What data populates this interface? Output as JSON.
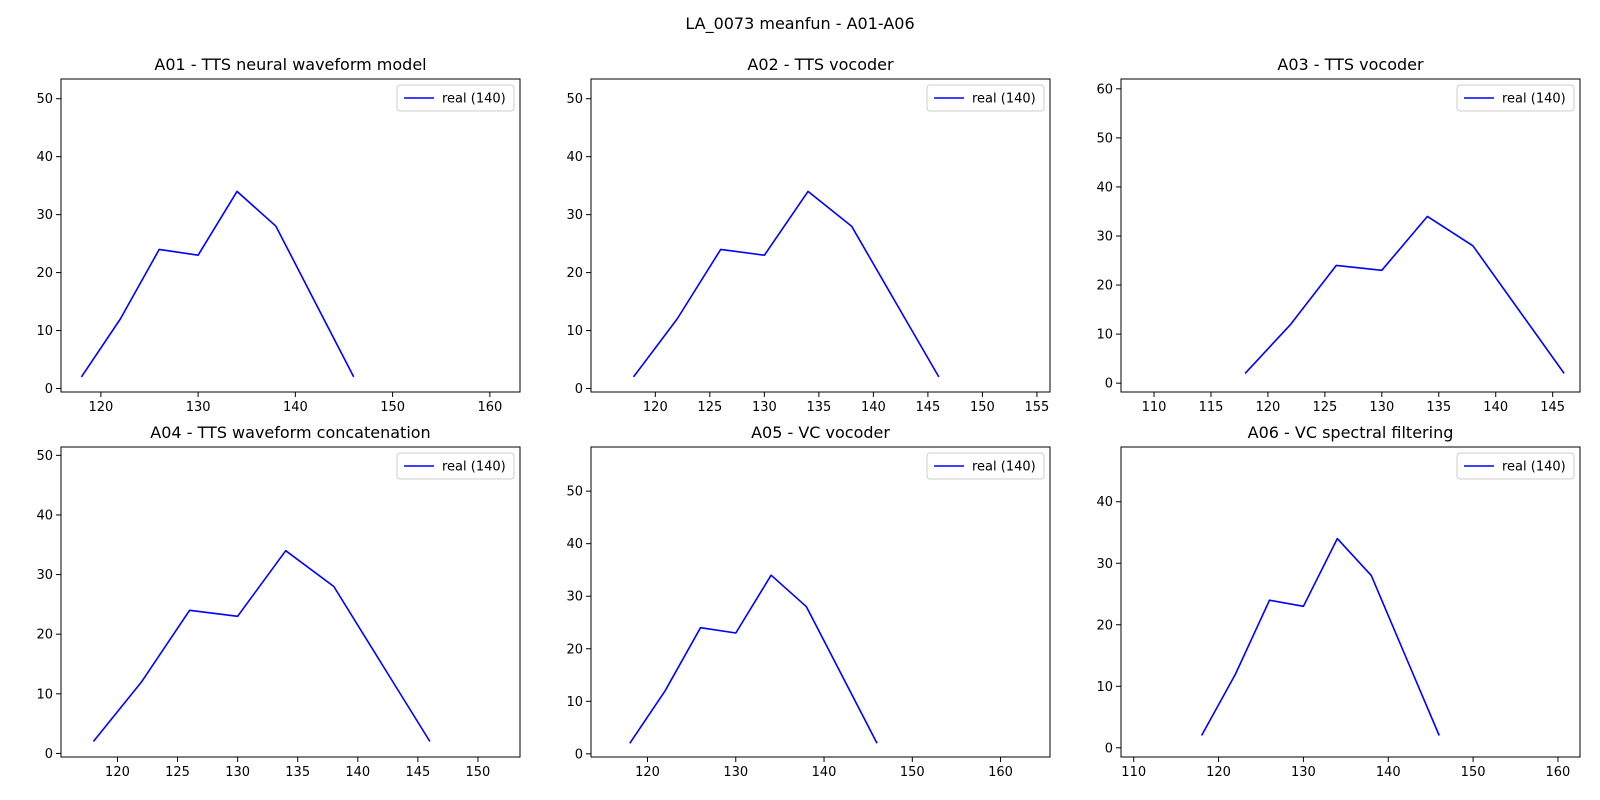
{
  "figure": {
    "suptitle": "LA_0073 meanfun - A01-A06"
  },
  "chart_data": [
    {
      "type": "line",
      "title": "A01 - TTS neural waveform model",
      "xlim": [
        115.9,
        163.1
      ],
      "ylim": [
        -0.6,
        53.4
      ],
      "xticks": [
        120,
        130,
        140,
        150,
        160
      ],
      "yticks": [
        0,
        10,
        20,
        30,
        40,
        50
      ],
      "legend": {
        "position": "top-right"
      },
      "series": [
        {
          "name": "real (140)",
          "color": "#0000ff",
          "x": [
            118,
            122,
            126,
            130,
            134,
            138,
            142,
            146
          ],
          "y": [
            2,
            12,
            24,
            23,
            34,
            28,
            15,
            2
          ]
        }
      ]
    },
    {
      "type": "line",
      "title": "A02 - TTS vocoder",
      "xlim": [
        114.1,
        156.2
      ],
      "ylim": [
        -0.6,
        53.4
      ],
      "xticks": [
        120,
        125,
        130,
        135,
        140,
        145,
        150,
        155
      ],
      "yticks": [
        0,
        10,
        20,
        30,
        40,
        50
      ],
      "legend": {
        "position": "top-right"
      },
      "series": [
        {
          "name": "real (140)",
          "color": "#0000ff",
          "x": [
            118,
            122,
            126,
            130,
            134,
            138,
            142,
            146
          ],
          "y": [
            2,
            12,
            24,
            23,
            34,
            28,
            15,
            2
          ]
        }
      ]
    },
    {
      "type": "line",
      "title": "A03 - TTS vocoder",
      "xlim": [
        107.1,
        147.4
      ],
      "ylim": [
        -1.8,
        62.0
      ],
      "xticks": [
        110,
        115,
        120,
        125,
        130,
        135,
        140,
        145
      ],
      "yticks": [
        0,
        10,
        20,
        30,
        40,
        50,
        60
      ],
      "legend": {
        "position": "top-right"
      },
      "series": [
        {
          "name": "real (140)",
          "color": "#0000ff",
          "x": [
            118,
            122,
            126,
            130,
            134,
            138,
            142,
            146
          ],
          "y": [
            2,
            12,
            24,
            23,
            34,
            28,
            15,
            2
          ]
        }
      ]
    },
    {
      "type": "line",
      "title": "A04 - TTS waveform concatenation",
      "xlim": [
        115.3,
        153.5
      ],
      "ylim": [
        -0.6,
        51.4
      ],
      "xticks": [
        120,
        125,
        130,
        135,
        140,
        145,
        150
      ],
      "yticks": [
        0,
        10,
        20,
        30,
        40,
        50
      ],
      "legend": {
        "position": "top-right"
      },
      "series": [
        {
          "name": "real (140)",
          "color": "#0000ff",
          "x": [
            118,
            122,
            126,
            130,
            134,
            138,
            142,
            146
          ],
          "y": [
            2,
            12,
            24,
            23,
            34,
            28,
            15,
            2
          ]
        }
      ]
    },
    {
      "type": "line",
      "title": "A05 - VC vocoder",
      "xlim": [
        113.6,
        165.6
      ],
      "ylim": [
        -0.6,
        58.4
      ],
      "xticks": [
        120,
        130,
        140,
        150,
        160
      ],
      "yticks": [
        0,
        10,
        20,
        30,
        40,
        50
      ],
      "legend": {
        "position": "top-right"
      },
      "series": [
        {
          "name": "real (140)",
          "color": "#0000ff",
          "x": [
            118,
            122,
            126,
            130,
            134,
            138,
            142,
            146
          ],
          "y": [
            2,
            12,
            24,
            23,
            34,
            28,
            15,
            2
          ]
        }
      ]
    },
    {
      "type": "line",
      "title": "A06 - VC spectral filtering",
      "xlim": [
        108.5,
        162.6
      ],
      "ylim": [
        -1.5,
        48.9
      ],
      "xticks": [
        110,
        120,
        130,
        140,
        150,
        160
      ],
      "yticks": [
        0,
        10,
        20,
        30,
        40
      ],
      "legend": {
        "position": "top-right"
      },
      "series": [
        {
          "name": "real (140)",
          "color": "#0000ff",
          "x": [
            118,
            122,
            126,
            130,
            134,
            138,
            142,
            146
          ],
          "y": [
            2,
            12,
            24,
            23,
            34,
            28,
            15,
            2
          ]
        }
      ]
    }
  ]
}
